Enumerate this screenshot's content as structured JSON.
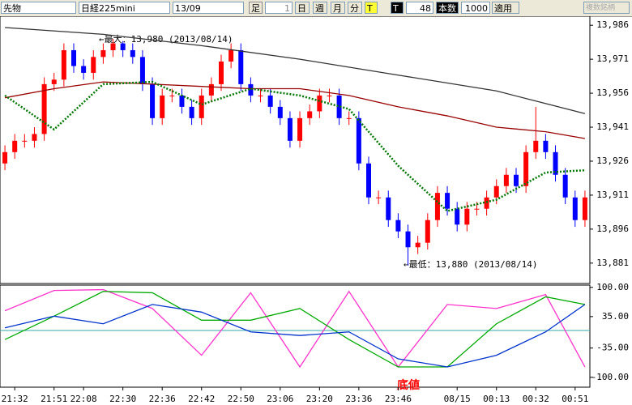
{
  "toolbar": {
    "market": "先物",
    "symbol": "日経225mini",
    "contract": "13/09",
    "bar_label": "足",
    "bar_size": "1",
    "day": "日",
    "week": "週",
    "month": "月",
    "minute": "分",
    "tick_yellow": "T",
    "tick_black": "T",
    "count_box": "48",
    "count_label": "本数",
    "count": "1000",
    "apply": "適用",
    "multi": "複数銘柄"
  },
  "chart_data": [
    {
      "type": "candlestick",
      "categories": [
        null,
        "21:32",
        null,
        null,
        null,
        "21:51",
        null,
        null,
        "22:08",
        null,
        null,
        null,
        "22:30",
        null,
        null,
        null,
        "22:36",
        null,
        null,
        null,
        "22:42",
        null,
        null,
        null,
        "22:50",
        null,
        null,
        null,
        "23:06",
        null,
        null,
        null,
        "23:20",
        null,
        null,
        null,
        "23:36",
        null,
        null,
        null,
        "23:46",
        null,
        null,
        null,
        null,
        null,
        "08/15",
        null,
        null,
        null,
        "00:13",
        null,
        null,
        null,
        "00:32",
        null,
        null,
        null,
        "00:51",
        null
      ],
      "open": [
        13925,
        13930,
        13935,
        13935,
        13938,
        13960,
        13962,
        13975,
        13968,
        13965,
        13972,
        13975,
        13978,
        13975,
        13972,
        13960,
        13945,
        13955,
        13955,
        13950,
        13945,
        13955,
        13960,
        13970,
        13975,
        13960,
        13955,
        13955,
        13950,
        13945,
        13935,
        13945,
        13948,
        13955,
        13955,
        13945,
        13945,
        13925,
        13910,
        13910,
        13900,
        13895,
        13888,
        13890,
        13900,
        13912,
        13905,
        13898,
        13905,
        13905,
        13910,
        13915,
        13920,
        13915,
        13930,
        13935,
        13930,
        13920,
        13910,
        13900
      ],
      "high": [
        13933,
        13938,
        13938,
        13941,
        13963,
        13965,
        13978,
        13978,
        13971,
        13975,
        13978,
        13980,
        13979,
        13978,
        13975,
        13963,
        13958,
        13958,
        13958,
        13953,
        13958,
        13963,
        13973,
        13978,
        13978,
        13963,
        13958,
        13958,
        13953,
        13948,
        13948,
        13951,
        13958,
        13958,
        13958,
        13948,
        13948,
        13928,
        13913,
        13913,
        13903,
        13898,
        13893,
        13903,
        13915,
        13915,
        13908,
        13908,
        13908,
        13913,
        13918,
        13923,
        13923,
        13933,
        13950,
        13938,
        13933,
        13923,
        13913,
        13913
      ],
      "low": [
        13922,
        13927,
        13932,
        13932,
        13935,
        13957,
        13959,
        13965,
        13962,
        13962,
        13969,
        13972,
        13972,
        13969,
        13957,
        13942,
        13942,
        13952,
        13947,
        13942,
        13942,
        13952,
        13957,
        13967,
        13957,
        13952,
        13952,
        13947,
        13942,
        13932,
        13932,
        13942,
        13945,
        13952,
        13942,
        13942,
        13922,
        13907,
        13907,
        13897,
        13892,
        13880,
        13885,
        13887,
        13897,
        13902,
        13895,
        13895,
        13902,
        13902,
        13907,
        13912,
        13912,
        13912,
        13927,
        13927,
        13917,
        13907,
        13897,
        13897
      ],
      "close": [
        13930,
        13935,
        13935,
        13938,
        13960,
        13962,
        13975,
        13968,
        13965,
        13972,
        13975,
        13978,
        13975,
        13972,
        13960,
        13945,
        13955,
        13955,
        13950,
        13945,
        13955,
        13960,
        13970,
        13975,
        13960,
        13955,
        13955,
        13950,
        13945,
        13935,
        13945,
        13948,
        13955,
        13955,
        13945,
        13945,
        13925,
        13910,
        13910,
        13900,
        13895,
        13888,
        13890,
        13900,
        13912,
        13905,
        13898,
        13905,
        13905,
        13910,
        13915,
        13920,
        13915,
        13930,
        13935,
        13930,
        13920,
        13910,
        13900,
        13910
      ],
      "up_color": "#ff0000",
      "down_color": "#0000ff",
      "series": [
        {
          "color": "#333333",
          "x": [
            0,
            10,
            20,
            30,
            40,
            50,
            59
          ],
          "values": [
            13985,
            13982,
            13977,
            13971,
            13964,
            13957,
            13947
          ]
        },
        {
          "color": "#990000",
          "x": [
            0,
            5,
            10,
            15,
            20,
            25,
            30,
            35,
            40,
            45,
            50,
            55,
            59
          ],
          "values": [
            13954,
            13958,
            13961,
            13960,
            13959,
            13958,
            13958,
            13955,
            13950,
            13946,
            13941,
            13939,
            13936
          ]
        },
        {
          "color": "#007700",
          "dotted": true,
          "x": [
            0,
            5,
            10,
            15,
            20,
            25,
            30,
            35,
            40,
            45,
            50,
            55,
            59
          ],
          "values": [
            13955,
            13940,
            13960,
            13961,
            13951,
            13958,
            13955,
            13949,
            13924,
            13904,
            13909,
            13921,
            13922
          ]
        }
      ],
      "annotations": {
        "max": "←最大：13,980 (2013/08/14)",
        "min": "←最低：13,880 (2013/08/14)"
      },
      "ylim": [
        13872,
        13990
      ],
      "yticks": [
        {
          "value": 13986,
          "label": "13,986"
        },
        {
          "value": 13971,
          "label": "13,971"
        },
        {
          "value": 13956,
          "label": "13,956"
        },
        {
          "value": 13941,
          "label": "13,941"
        },
        {
          "value": 13926,
          "label": "13,926"
        },
        {
          "value": 13911,
          "label": "13,911"
        },
        {
          "value": 13896,
          "label": "13,896"
        },
        {
          "value": 13881,
          "label": "13,881"
        }
      ]
    },
    {
      "type": "line",
      "annotation": "底値",
      "series": [
        {
          "color": "#ff33cc",
          "x": [
            0,
            5,
            10,
            15,
            20,
            25,
            30,
            35,
            40,
            45,
            50,
            55,
            59
          ],
          "values": [
            48,
            93,
            95,
            53,
            -51,
            88,
            -77,
            91,
            -77,
            62,
            53,
            84,
            -77
          ]
        },
        {
          "color": "#00aa00",
          "x": [
            0,
            5,
            10,
            15,
            20,
            25,
            30,
            35,
            40,
            45,
            50,
            55,
            59
          ],
          "values": [
            -16,
            36,
            91,
            88,
            27,
            27,
            53,
            -16,
            -77,
            -77,
            19,
            79,
            62
          ]
        },
        {
          "color": "#0033cc",
          "x": [
            0,
            5,
            10,
            15,
            20,
            25,
            30,
            35,
            40,
            45,
            50,
            55,
            59
          ],
          "values": [
            10,
            36,
            19,
            62,
            45,
            1,
            -7,
            1,
            -59,
            -77,
            -51,
            1,
            62
          ]
        }
      ],
      "ylim": [
        -122,
        105
      ],
      "yticks": [
        {
          "value": 100,
          "label": "100.00"
        },
        {
          "value": 35,
          "label": "35.00"
        },
        {
          "value": -35,
          "label": "-35.00"
        },
        {
          "value": -100,
          "label": "-100.00"
        }
      ]
    }
  ]
}
